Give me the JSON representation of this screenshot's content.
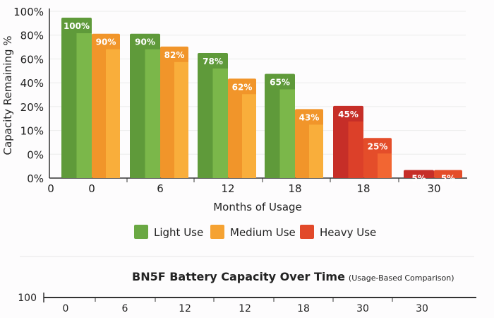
{
  "chart_data": {
    "type": "bar",
    "title": "BN5F Battery Capacity Over Time",
    "subtitle": "(Usage-Based Comparison)",
    "xlabel": "Months of Usage",
    "ylabel": "Capacity Remaining %",
    "y_tick_labels": [
      "0%",
      "0%",
      "10%",
      "20%",
      "40%",
      "60%",
      "80%",
      "100%"
    ],
    "x_origin_label": "0",
    "categories": [
      "0",
      "6",
      "12",
      "18",
      "18",
      "30"
    ],
    "grid": true,
    "legend_position": "bottom",
    "legend": [
      {
        "name": "Light Use",
        "color": "#6aa843"
      },
      {
        "name": "Medium Use",
        "color": "#f5a232"
      },
      {
        "name": "Heavy Use",
        "color": "#e2492a"
      }
    ],
    "groups": [
      {
        "category": "0",
        "bars": [
          {
            "series": "Light Use",
            "value": 100,
            "label": "100%"
          },
          {
            "series": "Medium Use",
            "value": 90,
            "label": "90%"
          }
        ]
      },
      {
        "category": "6",
        "bars": [
          {
            "series": "Light Use",
            "value": 90,
            "label": "90%"
          },
          {
            "series": "Medium Use",
            "value": 82,
            "label": "82%"
          }
        ]
      },
      {
        "category": "12",
        "bars": [
          {
            "series": "Light Use",
            "value": 78,
            "label": "78%"
          },
          {
            "series": "Medium Use",
            "value": 62,
            "label": "62%"
          }
        ]
      },
      {
        "category": "18",
        "bars": [
          {
            "series": "Light Use",
            "value": 65,
            "label": "65%"
          },
          {
            "series": "Medium Use",
            "value": 43,
            "label": "43%"
          }
        ]
      },
      {
        "category": "18",
        "bars": [
          {
            "series": "Heavy Use",
            "value": 45,
            "label": "45%"
          },
          {
            "series": "Heavy Use",
            "value": 25,
            "label": "25%"
          }
        ]
      },
      {
        "category": "30",
        "bars": [
          {
            "series": "Heavy Use",
            "value": 5,
            "label": "5%"
          },
          {
            "series": "Heavy Use",
            "value": 5,
            "label": "5%"
          }
        ]
      }
    ],
    "secondary_axis": {
      "start_label": "100",
      "tick_labels": [
        "0",
        "6",
        "12",
        "12",
        "18",
        "30",
        "30"
      ]
    }
  }
}
